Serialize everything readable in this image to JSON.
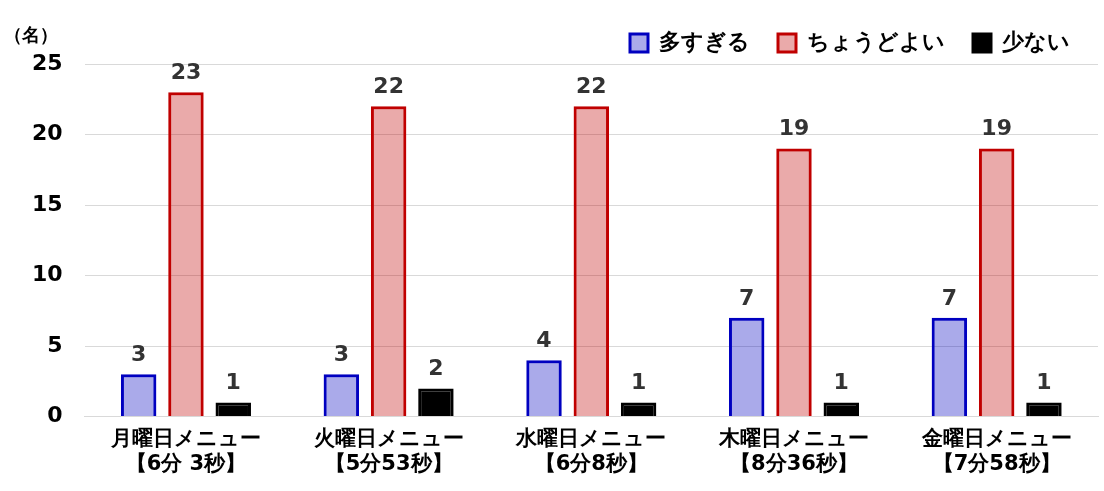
{
  "chart_data": {
    "type": "bar",
    "ylabel": "（名）",
    "categories": [
      "月曜日メニュー【6分 3秒】",
      "火曜日メニュー【5分53秒】",
      "水曜日メニュー【6分8秒】",
      "木曜日メニュー【8分36秒】",
      "金曜日メニュー【7分58秒】"
    ],
    "series": [
      {
        "name": "多すぎる",
        "color": "#0000c0",
        "values": [
          3,
          3,
          4,
          7,
          7
        ]
      },
      {
        "name": "ちょうどよい",
        "color": "#c00000",
        "values": [
          23,
          22,
          22,
          19,
          19
        ]
      },
      {
        "name": "少ない",
        "color": "#000000",
        "values": [
          1,
          2,
          1,
          1,
          1
        ]
      }
    ],
    "ylim": [
      0,
      25
    ],
    "yticks": [
      0,
      5,
      10,
      15,
      20,
      25
    ],
    "grid": "y",
    "legend": "top right",
    "data_labels": true
  }
}
